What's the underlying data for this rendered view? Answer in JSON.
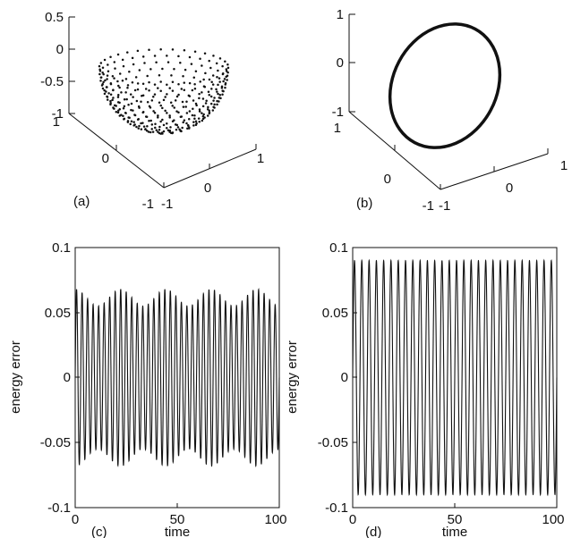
{
  "colors": {
    "ink": "#111111",
    "background": "#ffffff"
  },
  "chart_data": [
    {
      "id": "a",
      "type": "scatter",
      "panel_label": "(a)",
      "view": "3d",
      "shape": "points on a lower hemisphere (bowl)",
      "x_ticks": [
        "-1",
        "0",
        "1"
      ],
      "y_ticks": [
        "-1",
        "0",
        "1"
      ],
      "z_ticks": [
        "0.5",
        "0",
        "-0.5",
        "-1"
      ],
      "xlim": [
        -1,
        1
      ],
      "ylim": [
        -1,
        1
      ],
      "zlim": [
        -1,
        0.5
      ],
      "radius": 1,
      "rim_z": 0.2
    },
    {
      "id": "b",
      "type": "line",
      "panel_label": "(b)",
      "view": "3d",
      "shape": "closed loop (great circle)",
      "x_ticks": [
        "-1",
        "0",
        "1"
      ],
      "y_ticks": [
        "-1",
        "0",
        "1"
      ],
      "z_ticks": [
        "1",
        "0",
        "-1"
      ],
      "xlim": [
        -1,
        1
      ],
      "ylim": [
        -1,
        1
      ],
      "zlim": [
        -1,
        1
      ]
    },
    {
      "id": "c",
      "type": "line",
      "panel_label": "(c)",
      "xlabel": "time",
      "ylabel": "energy error",
      "xlim": [
        0,
        100
      ],
      "ylim": [
        -0.1,
        0.1
      ],
      "x_ticks": [
        "0",
        "50",
        "100"
      ],
      "y_ticks": [
        "0.1",
        "0.05",
        "0",
        "-0.05",
        "-0.1"
      ],
      "oscillation": {
        "cycles": 37,
        "amplitude_min": 0.055,
        "amplitude_max": 0.068,
        "envelope_beat_cycles": 4.5
      }
    },
    {
      "id": "d",
      "type": "line",
      "panel_label": "(d)",
      "xlabel": "time",
      "ylabel": "energy error",
      "xlim": [
        0,
        100
      ],
      "ylim": [
        -0.1,
        0.1
      ],
      "x_ticks": [
        "0",
        "50",
        "100"
      ],
      "y_ticks": [
        "0.1",
        "0.05",
        "0",
        "-0.05",
        "-0.1"
      ],
      "oscillation": {
        "cycles": 28,
        "amplitude_min": 0.09,
        "amplitude_max": 0.09
      }
    }
  ]
}
